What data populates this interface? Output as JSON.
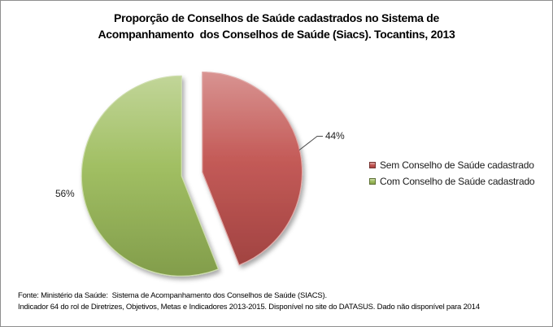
{
  "chart_canvas": {
    "background": "#FFFFFF",
    "border_color": "#8E8E8E"
  },
  "title": {
    "line1": "Proporção de Conselhos de Saúde cadastrados no Sistema de",
    "line2": "Acompanhamento  dos Conselhos de Saúde (Siacs). Tocantins, 2013"
  },
  "chart_data": {
    "type": "pie",
    "title": "Proporção de Conselhos de Saúde cadastrados no Sistema de Acompanhamento dos Conselhos de Saúde (Siacs). Tocantins, 2013",
    "slices": [
      {
        "label": "Sem Conselho de Saúde cadastrado",
        "value": 44,
        "data_label": "44%",
        "color": "#C0504D"
      },
      {
        "label": "Com Conselho de Saúde cadastrado",
        "value": 56,
        "data_label": "56%",
        "color": "#9BBB59"
      }
    ],
    "start_angle_deg": 0,
    "direction": "clockwise",
    "exploded": true,
    "legend_position": "right",
    "data_label_style": "percent-outside"
  },
  "footer": {
    "line1": "Fonte: Ministério da Saúde:  Sistema de Acompanhamento dos Conselhos de Saúde (SIACS).",
    "line2": "Indicador 64 do rol de Diretrizes, Objetivos, Metas e Indicadores 2013-2015. Disponível no site do DATASUS. Dado não disponível para 2014"
  }
}
